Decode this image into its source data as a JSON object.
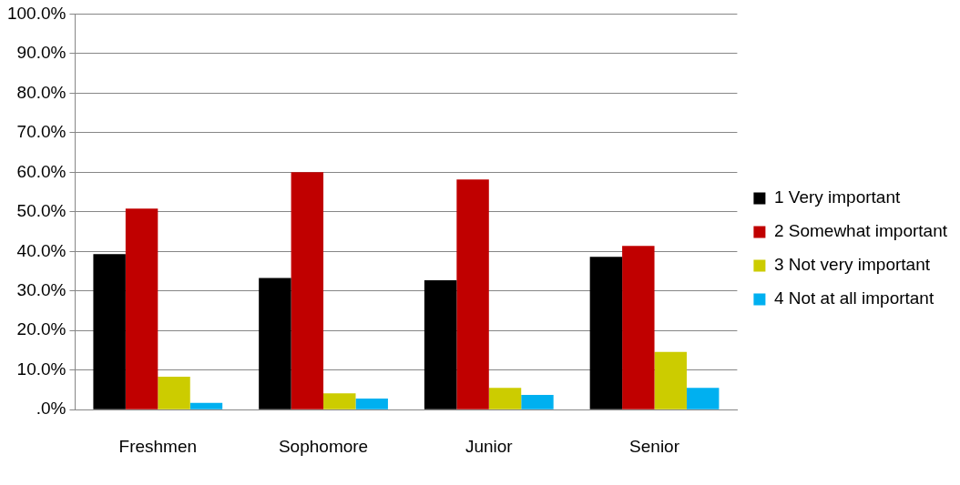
{
  "chart_data": {
    "type": "bar",
    "categories": [
      "Freshmen",
      "Sophomore",
      "Junior",
      "Senior"
    ],
    "series": [
      {
        "name": "1 Very important",
        "color": "#000000",
        "values": [
          39.3,
          33.3,
          32.7,
          38.6
        ]
      },
      {
        "name": "2 Somewhat important",
        "color": "#c00000",
        "values": [
          50.8,
          60.0,
          58.2,
          41.4
        ]
      },
      {
        "name": "3 Not very important",
        "color": "#cccc00",
        "values": [
          8.3,
          4.1,
          5.5,
          14.6
        ]
      },
      {
        "name": "4 Not at all important",
        "color": "#00b0f0",
        "values": [
          1.7,
          2.8,
          3.7,
          5.5
        ]
      }
    ],
    "ylim": [
      0,
      100
    ],
    "yticks": [
      {
        "value": 0,
        "label": ".0%"
      },
      {
        "value": 10,
        "label": "10.0%"
      },
      {
        "value": 20,
        "label": "20.0%"
      },
      {
        "value": 30,
        "label": "30.0%"
      },
      {
        "value": 40,
        "label": "40.0%"
      },
      {
        "value": 50,
        "label": "50.0%"
      },
      {
        "value": 60,
        "label": "60.0%"
      },
      {
        "value": 70,
        "label": "70.0%"
      },
      {
        "value": 80,
        "label": "80.0%"
      },
      {
        "value": 90,
        "label": "90.0%"
      },
      {
        "value": 100,
        "label": "100.0%"
      }
    ],
    "grid": "y",
    "legend": "right"
  }
}
